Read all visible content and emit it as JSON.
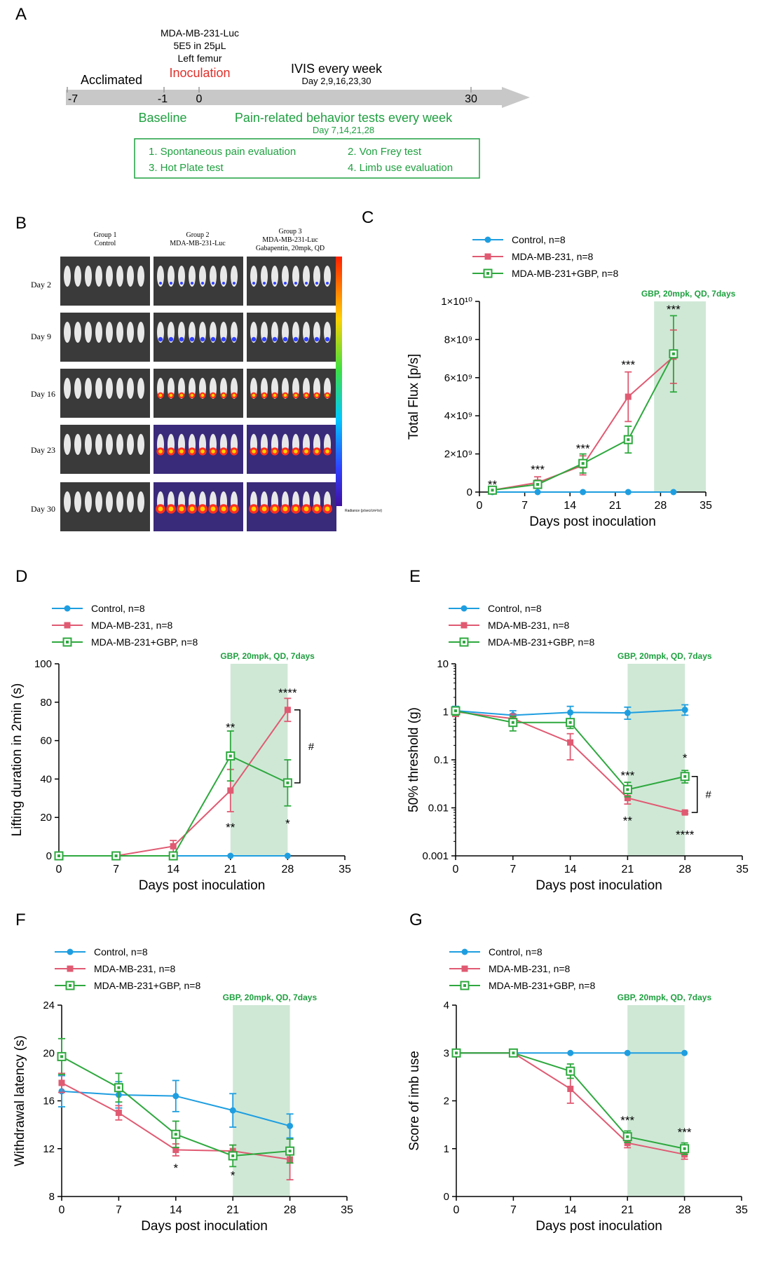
{
  "colors": {
    "control": "#1e9ee0",
    "mda": "#e05a72",
    "gbp": "#2ea83e",
    "shade": "#cfe8d6",
    "arrow": "#c8c8c8",
    "red": "#e0302a",
    "green": "#1fa040"
  },
  "panelA": {
    "label": "A",
    "cells": "MDA-MB-231-Luc",
    "dose": "5E5 in 25μL",
    "site": "Left femur",
    "inoculation": "Inoculation",
    "acclimated": "Acclimated",
    "ivis": "IVIS every week",
    "ivis_days": "Day 2,9,16,23,30",
    "ticks": [
      "-7",
      "-1",
      "0",
      "30"
    ],
    "baseline": "Baseline",
    "pain_tests": "Pain-related behavior tests every week",
    "pain_days": "Day 7,14,21,28",
    "tests": [
      "1. Spontaneous pain evaluation",
      "2. Von Frey test",
      "3. Hot Plate test",
      "4. Limb use evaluation"
    ]
  },
  "panelB": {
    "label": "B",
    "groups": [
      {
        "title": "Group 1",
        "sub": "Control",
        "sub2": ""
      },
      {
        "title": "Group 2",
        "sub": "MDA-MB-231-Luc",
        "sub2": ""
      },
      {
        "title": "Group 3",
        "sub": "MDA-MB-231-Luc",
        "sub2": "Gabapentin, 20mpk, QD"
      }
    ],
    "days": [
      "Day 2",
      "Day 9",
      "Day 16",
      "Day 23",
      "Day 30"
    ],
    "colorbar_label": "Radiance (p/sec/cm²/sr)"
  },
  "legend": {
    "control": "Control, n=8",
    "mda": "MDA-MB-231, n=8",
    "gbp": "MDA-MB-231+GBP, n=8"
  },
  "chart_data": [
    {
      "panel": "C",
      "type": "line",
      "xlabel": "Days post inoculation",
      "ylabel": "Total Flux [p/s]",
      "ylim": [
        0,
        10000000000
      ],
      "xlim": [
        0,
        35
      ],
      "xticks": [
        0,
        7,
        14,
        21,
        28,
        35
      ],
      "yticks": [
        "0",
        "2×10⁹",
        "4×10⁹",
        "6×10⁹",
        "8×10⁹",
        "1×10¹⁰"
      ],
      "shade": {
        "from": 27,
        "to": 35,
        "label": "GBP, 20mpk, QD, 7days"
      },
      "series": [
        {
          "name": "Control, n=8",
          "key": "control",
          "x": [
            2,
            9,
            16,
            23,
            30
          ],
          "values": [
            0,
            0,
            0,
            0,
            0
          ],
          "err": [
            0,
            0,
            0,
            0,
            0
          ]
        },
        {
          "name": "MDA-MB-231, n=8",
          "key": "mda",
          "x": [
            2,
            9,
            16,
            23,
            30
          ],
          "values": [
            100000000,
            500000000,
            1400000000,
            5000000000,
            7100000000
          ],
          "err": [
            50000000,
            300000000,
            500000000,
            1300000000,
            1400000000
          ]
        },
        {
          "name": "MDA-MB-231+GBP, n=8",
          "key": "gbp",
          "x": [
            2,
            9,
            16,
            23,
            30
          ],
          "values": [
            100000000,
            400000000,
            1500000000,
            2750000000,
            7250000000
          ],
          "err": [
            50000000,
            200000000,
            500000000,
            700000000,
            2000000000
          ]
        }
      ],
      "annotations": [
        {
          "x": 2,
          "y": 400000000,
          "text": "**"
        },
        {
          "x": 9,
          "y": 1200000000,
          "text": "***"
        },
        {
          "x": 16,
          "y": 2300000000,
          "text": "***"
        },
        {
          "x": 23,
          "y": 6700000000,
          "text": "***"
        },
        {
          "x": 30,
          "y": 9600000000,
          "text": "***"
        }
      ]
    },
    {
      "panel": "D",
      "type": "line",
      "xlabel": "Days post inoculation",
      "ylabel": "Lifting duration in 2min (s)",
      "ylim": [
        0,
        100
      ],
      "xlim": [
        0,
        35
      ],
      "xticks": [
        0,
        7,
        14,
        21,
        28,
        35
      ],
      "yticks": [
        "0",
        "20",
        "40",
        "60",
        "80",
        "100"
      ],
      "shade": {
        "from": 21,
        "to": 28,
        "label": "GBP, 20mpk, QD, 7days"
      },
      "series": [
        {
          "name": "Control, n=8",
          "key": "control",
          "x": [
            0,
            7,
            14,
            21,
            28
          ],
          "values": [
            0,
            0,
            0,
            0,
            0
          ],
          "err": [
            0,
            0,
            0,
            0,
            0
          ]
        },
        {
          "name": "MDA-MB-231, n=8",
          "key": "mda",
          "x": [
            0,
            7,
            14,
            21,
            28
          ],
          "values": [
            0,
            0,
            5,
            34,
            76
          ],
          "err": [
            0,
            0,
            3,
            11,
            6
          ]
        },
        {
          "name": "MDA-MB-231+GBP, n=8",
          "key": "gbp",
          "x": [
            0,
            7,
            14,
            21,
            28
          ],
          "values": [
            0,
            0,
            0,
            52,
            38
          ],
          "err": [
            0,
            0,
            0,
            13,
            12
          ]
        }
      ],
      "annotations": [
        {
          "x": 21,
          "y": 67,
          "text": "**"
        },
        {
          "x": 21,
          "y": 15,
          "text": "**"
        },
        {
          "x": 28,
          "y": 85,
          "text": "****"
        },
        {
          "x": 28,
          "y": 17,
          "text": "*"
        }
      ],
      "bracket": {
        "x": 29.5,
        "y1": 76,
        "y2": 38,
        "text": "#"
      }
    },
    {
      "panel": "E",
      "type": "line",
      "scale": "log",
      "xlabel": "Days post inoculation",
      "ylabel": "50% threshold (g)",
      "ylim": [
        0.001,
        10
      ],
      "xlim": [
        0,
        35
      ],
      "xticks": [
        0,
        7,
        14,
        21,
        28,
        35
      ],
      "yticks": [
        "0.001",
        "0.01",
        "0.1",
        "1",
        "10"
      ],
      "shade": {
        "from": 21,
        "to": 28,
        "label": "GBP, 20mpk, QD, 7days"
      },
      "series": [
        {
          "name": "Control, n=8",
          "key": "control",
          "x": [
            0,
            7,
            14,
            21,
            28
          ],
          "values": [
            1.05,
            0.85,
            0.97,
            0.95,
            1.1
          ],
          "err_hi": [
            1.3,
            1.05,
            1.3,
            1.25,
            1.4
          ],
          "err_lo": [
            0.8,
            0.65,
            0.7,
            0.7,
            0.85
          ]
        },
        {
          "name": "MDA-MB-231, n=8",
          "key": "mda",
          "x": [
            0,
            7,
            14,
            21,
            28
          ],
          "values": [
            1.0,
            0.72,
            0.23,
            0.016,
            0.008
          ],
          "err_hi": [
            1.2,
            0.9,
            0.35,
            0.022,
            0.0085
          ],
          "err_lo": [
            0.8,
            0.55,
            0.1,
            0.012,
            0.0075
          ]
        },
        {
          "name": "MDA-MB-231+GBP, n=8",
          "key": "gbp",
          "x": [
            0,
            7,
            14,
            21,
            28
          ],
          "values": [
            1.05,
            0.6,
            0.6,
            0.024,
            0.045
          ],
          "err_hi": [
            1.25,
            0.8,
            0.7,
            0.034,
            0.06
          ],
          "err_lo": [
            0.85,
            0.4,
            0.45,
            0.017,
            0.033
          ]
        }
      ],
      "annotations": [
        {
          "x": 21,
          "y": 0.048,
          "text": "***"
        },
        {
          "x": 21,
          "y": 0.0055,
          "text": "**"
        },
        {
          "x": 28,
          "y": 0.11,
          "text": "*"
        },
        {
          "x": 28,
          "y": 0.0028,
          "text": "****"
        }
      ],
      "bracket": {
        "x": 29.5,
        "y1": 0.045,
        "y2": 0.008,
        "text": "#"
      }
    },
    {
      "panel": "F",
      "type": "line",
      "xlabel": "Days post inoculation",
      "ylabel": "Withdrawal latency (s)",
      "ylim": [
        8,
        24
      ],
      "xlim": [
        0,
        35
      ],
      "xticks": [
        0,
        7,
        14,
        21,
        28,
        35
      ],
      "yticks": [
        "8",
        "12",
        "16",
        "20",
        "24"
      ],
      "shade": {
        "from": 21,
        "to": 28,
        "label": "GBP, 20mpk, QD, 7days"
      },
      "series": [
        {
          "name": "Control, n=8",
          "key": "control",
          "x": [
            0,
            7,
            14,
            21,
            28
          ],
          "values": [
            16.8,
            16.5,
            16.4,
            15.2,
            13.9
          ],
          "err": [
            1.3,
            1.1,
            1.3,
            1.4,
            1.0
          ]
        },
        {
          "name": "MDA-MB-231, n=8",
          "key": "mda",
          "x": [
            0,
            7,
            14,
            21,
            28
          ],
          "values": [
            17.5,
            15.0,
            11.9,
            11.8,
            11.1
          ],
          "err": [
            0.8,
            0.6,
            0.5,
            0.5,
            1.7
          ]
        },
        {
          "name": "MDA-MB-231+GBP, n=8",
          "key": "gbp",
          "x": [
            0,
            7,
            14,
            21,
            28
          ],
          "values": [
            19.7,
            17.1,
            13.2,
            11.4,
            11.8
          ],
          "err": [
            1.5,
            1.2,
            1.1,
            0.9,
            1.0
          ]
        }
      ],
      "annotations": [
        {
          "x": 14,
          "y": 10.4,
          "text": "*"
        },
        {
          "x": 21,
          "y": 9.8,
          "text": "*"
        }
      ]
    },
    {
      "panel": "G",
      "type": "line",
      "xlabel": "Days post inoculation",
      "ylabel": "Score of imb use",
      "ylim": [
        0,
        4
      ],
      "xlim": [
        0,
        35
      ],
      "xticks": [
        0,
        7,
        14,
        21,
        28,
        35
      ],
      "yticks": [
        "0",
        "1",
        "2",
        "3",
        "4"
      ],
      "shade": {
        "from": 21,
        "to": 28,
        "label": "GBP, 20mpk, QD, 7days"
      },
      "series": [
        {
          "name": "Control, n=8",
          "key": "control",
          "x": [
            0,
            7,
            14,
            21,
            28
          ],
          "values": [
            3,
            3,
            3,
            3,
            3
          ],
          "err": [
            0,
            0,
            0,
            0,
            0
          ]
        },
        {
          "name": "MDA-MB-231, n=8",
          "key": "mda",
          "x": [
            0,
            7,
            14,
            21,
            28
          ],
          "values": [
            3,
            3,
            2.25,
            1.12,
            0.88
          ],
          "err": [
            0,
            0,
            0.3,
            0.1,
            0.1
          ]
        },
        {
          "name": "MDA-MB-231+GBP, n=8",
          "key": "gbp",
          "x": [
            0,
            7,
            14,
            21,
            28
          ],
          "values": [
            3,
            3,
            2.62,
            1.25,
            1.0
          ],
          "err": [
            0,
            0,
            0.15,
            0.12,
            0.12
          ]
        }
      ],
      "annotations": [
        {
          "x": 21,
          "y": 1.6,
          "text": "***"
        },
        {
          "x": 28,
          "y": 1.35,
          "text": "***"
        }
      ]
    }
  ]
}
